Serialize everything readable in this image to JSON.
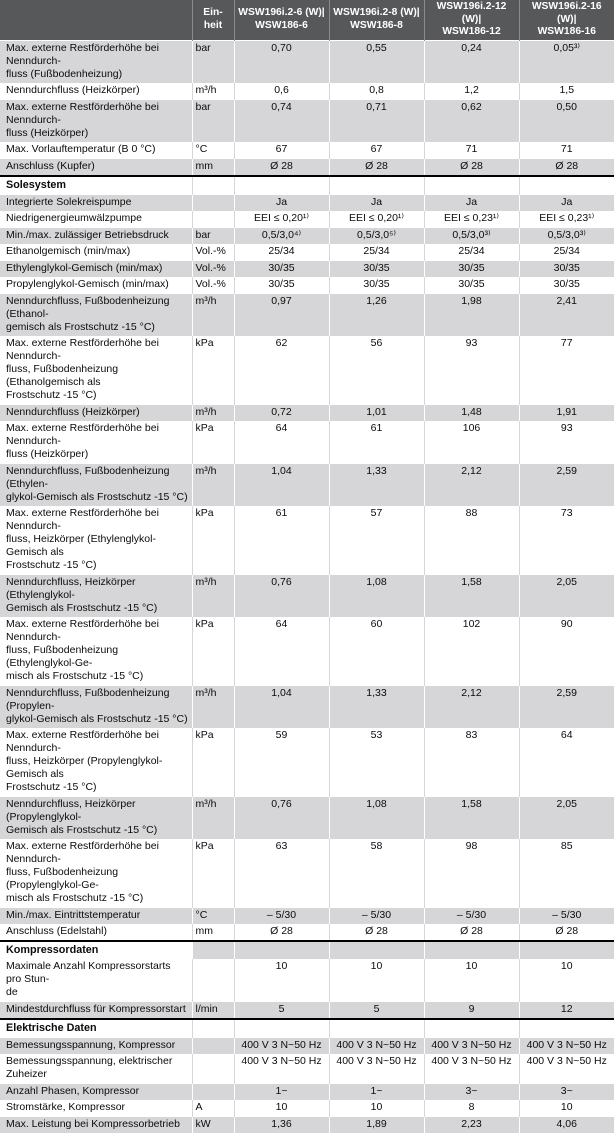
{
  "colors": {
    "header_bg": "#57585a",
    "header_text": "#ffffff",
    "stripe_gray": "#d6d6d8",
    "row_white": "#ffffff",
    "section_divider": "#000000"
  },
  "table": {
    "header": {
      "unit_label": "Ein-\nheit",
      "models": [
        "WSW196i.2-6 (W)|\nWSW186-6",
        "WSW196i.2-8 (W)|\nWSW186-8",
        "WSW196i.2-12 (W)|\nWSW186-12",
        "WSW196i.2-16 (W)|\nWSW186-16"
      ]
    },
    "rows": [
      {
        "type": "data",
        "label": "Max. externe Restförderhöhe bei Nenndurch-\nfluss (Fußbodenheizung)",
        "unit": "bar",
        "values": [
          "0,70",
          "0,55",
          "0,24",
          "0,05³⁾"
        ]
      },
      {
        "type": "data",
        "label": "Nenndurchfluss (Heizkörper)",
        "unit": "m³/h",
        "values": [
          "0,6",
          "0,8",
          "1,2",
          "1,5"
        ]
      },
      {
        "type": "data",
        "label": "Max. externe Restförderhöhe bei Nenndurch-\nfluss (Heizkörper)",
        "unit": "bar",
        "values": [
          "0,74",
          "0,71",
          "0,62",
          "0,50"
        ]
      },
      {
        "type": "data",
        "label": "Max. Vorlauftemperatur (B 0 °C)",
        "unit": "°C",
        "values": [
          "67",
          "67",
          "71",
          "71"
        ]
      },
      {
        "type": "data",
        "label": "Anschluss (Kupfer)",
        "unit": "mm",
        "values": [
          "Ø 28",
          "Ø 28",
          "Ø 28",
          "Ø 28"
        ]
      },
      {
        "type": "section",
        "label": "Solesystem"
      },
      {
        "type": "data",
        "label": "Integrierte Solekreispumpe",
        "unit": "",
        "values": [
          "Ja",
          "Ja",
          "Ja",
          "Ja"
        ]
      },
      {
        "type": "data",
        "label": "Niedrigenergieumwälzpumpe",
        "unit": "",
        "values": [
          "EEI ≤ 0,20¹⁾",
          "EEI ≤ 0,20¹⁾",
          "EEI ≤ 0,23¹⁾",
          "EEI ≤ 0,23¹⁾"
        ]
      },
      {
        "type": "data",
        "label": "Min./max. zulässiger Betriebsdruck",
        "unit": "bar",
        "values": [
          "0,5/3,0⁴⁾",
          "0,5/3,0⁵⁾",
          "0,5/3,0³⁾",
          "0,5/3,0³⁾"
        ]
      },
      {
        "type": "data",
        "label": "Ethanolgemisch (min/max)",
        "unit": "Vol.-%",
        "values": [
          "25/34",
          "25/34",
          "25/34",
          "25/34"
        ]
      },
      {
        "type": "data",
        "label": "Ethylenglykol-Gemisch (min/max)",
        "unit": "Vol.-%",
        "values": [
          "30/35",
          "30/35",
          "30/35",
          "30/35"
        ]
      },
      {
        "type": "data",
        "label": "Propylenglykol-Gemisch (min/max)",
        "unit": "Vol.-%",
        "values": [
          "30/35",
          "30/35",
          "30/35",
          "30/35"
        ]
      },
      {
        "type": "data",
        "label": "Nenndurchfluss, Fußbodenheizung (Ethanol-\ngemisch als Frostschutz -15 °C)",
        "unit": "m³/h",
        "values": [
          "0,97",
          "1,26",
          "1,98",
          "2,41"
        ]
      },
      {
        "type": "data",
        "label": "Max. externe Restförderhöhe bei Nenndurch-\nfluss, Fußbodenheizung (Ethanolgemisch als\nFrostschutz -15 °C)",
        "unit": "kPa",
        "values": [
          "62",
          "56",
          "93",
          "77"
        ]
      },
      {
        "type": "data",
        "label": "Nenndurchfluss (Heizkörper)",
        "unit": "m³/h",
        "values": [
          "0,72",
          "1,01",
          "1,48",
          "1,91"
        ]
      },
      {
        "type": "data",
        "label": "Max. externe Restförderhöhe bei Nenndurch-\nfluss (Heizkörper)",
        "unit": "kPa",
        "values": [
          "64",
          "61",
          "106",
          "93"
        ]
      },
      {
        "type": "data",
        "label": "Nenndurchfluss, Fußbodenheizung (Ethylen-\nglykol-Gemisch als Frostschutz -15 °C)",
        "unit": "m³/h",
        "values": [
          "1,04",
          "1,33",
          "2,12",
          "2,59"
        ]
      },
      {
        "type": "data",
        "label": "Max. externe Restförderhöhe bei Nenndurch-\nfluss, Heizkörper (Ethylenglykol-Gemisch als\nFrostschutz -15 °C)",
        "unit": "kPa",
        "values": [
          "61",
          "57",
          "88",
          "73"
        ]
      },
      {
        "type": "data",
        "label": "Nenndurchfluss, Heizkörper (Ethylenglykol-\nGemisch als Frostschutz -15 °C)",
        "unit": "m³/h",
        "values": [
          "0,76",
          "1,08",
          "1,58",
          "2,05"
        ]
      },
      {
        "type": "data",
        "label": "Max. externe Restförderhöhe bei Nenndurch-\nfluss, Fußbodenheizung (Ethylenglykol-Ge-\nmisch als Frostschutz -15 °C)",
        "unit": "kPa",
        "values": [
          "64",
          "60",
          "102",
          "90"
        ]
      },
      {
        "type": "data",
        "label": "Nenndurchfluss, Fußbodenheizung (Propylen-\nglykol-Gemisch als Frostschutz -15 °C)",
        "unit": "m³/h",
        "values": [
          "1,04",
          "1,33",
          "2,12",
          "2,59"
        ]
      },
      {
        "type": "data",
        "label": "Max. externe Restförderhöhe bei Nenndurch-\nfluss, Heizkörper (Propylenglykol-Gemisch als\nFrostschutz -15 °C)",
        "unit": "kPa",
        "values": [
          "59",
          "53",
          "83",
          "64"
        ]
      },
      {
        "type": "data",
        "label": "Nenndurchfluss, Heizkörper (Propylenglykol-\nGemisch als Frostschutz -15 °C)",
        "unit": "m³/h",
        "values": [
          "0,76",
          "1,08",
          "1,58",
          "2,05"
        ]
      },
      {
        "type": "data",
        "label": "Max. externe Restförderhöhe bei Nenndurch-\nfluss, Fußbodenheizung (Propylenglykol-Ge-\nmisch als Frostschutz -15 °C)",
        "unit": "kPa",
        "values": [
          "63",
          "58",
          "98",
          "85"
        ]
      },
      {
        "type": "data",
        "label": "Min./max. Eintrittstemperatur",
        "unit": "°C",
        "values": [
          "– 5/30",
          "– 5/30",
          "– 5/30",
          "– 5/30"
        ]
      },
      {
        "type": "data",
        "label": "Anschluss (Edelstahl)",
        "unit": "mm",
        "values": [
          "Ø 28",
          "Ø 28",
          "Ø 28",
          "Ø 28"
        ]
      },
      {
        "type": "section",
        "label": "Kompressordaten"
      },
      {
        "type": "data",
        "label": "Maximale Anzahl Kompressorstarts pro Stun-\nde",
        "unit": "",
        "values": [
          "10",
          "10",
          "10",
          "10"
        ]
      },
      {
        "type": "data",
        "label": "Mindestdurchfluss für Kompressorstart",
        "unit": "l/min",
        "values": [
          "5",
          "5",
          "9",
          "12"
        ]
      },
      {
        "type": "section",
        "label": "Elektrische Daten"
      },
      {
        "type": "data",
        "label": "Bemessungsspannung, Kompressor",
        "unit": "",
        "values": [
          "400 V 3 N~50 Hz",
          "400 V 3 N~50 Hz",
          "400 V 3 N~50 Hz",
          "400 V 3 N~50 Hz"
        ]
      },
      {
        "type": "data",
        "label": "Bemessungsspannung, elektrischer Zuheizer",
        "unit": "",
        "values": [
          "400 V 3 N~50 Hz",
          "400 V 3 N~50 Hz",
          "400 V 3 N~50 Hz",
          "400 V 3 N~50 Hz"
        ]
      },
      {
        "type": "data",
        "label": "Anzahl Phasen, Kompressor",
        "unit": "",
        "values": [
          "1~",
          "1~",
          "3~",
          "3~"
        ]
      },
      {
        "type": "data",
        "label": "Stromstärke, Kompressor",
        "unit": "A",
        "values": [
          "10",
          "10",
          "8",
          "10"
        ]
      },
      {
        "type": "data",
        "label": "Max. Leistung bei Kompressorbetrieb",
        "unit": "kW",
        "values": [
          "1,36",
          "1,89",
          "2,23",
          "4,06"
        ]
      }
    ]
  }
}
